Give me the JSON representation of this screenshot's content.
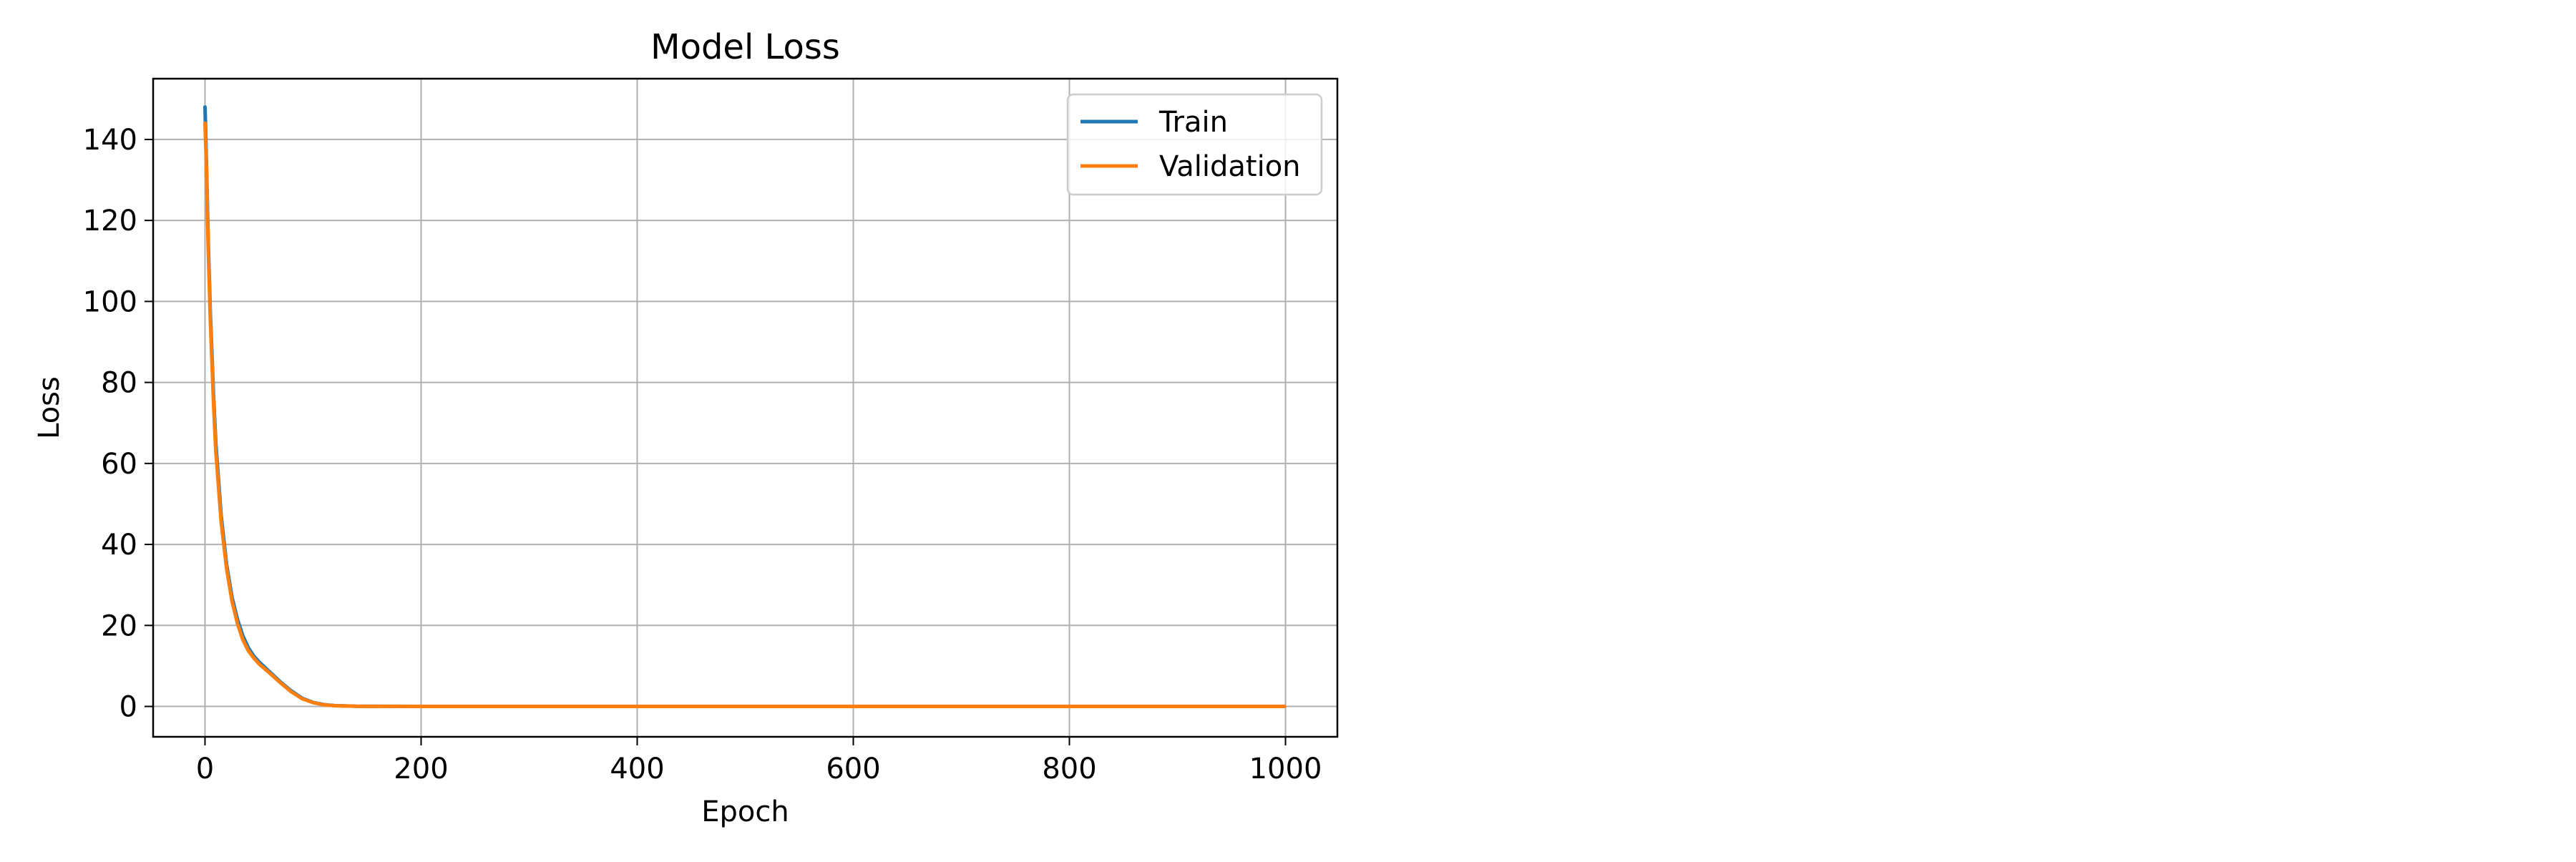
{
  "chart_data": {
    "type": "line",
    "title": "Model Loss",
    "xlabel": "Epoch",
    "ylabel": "Loss",
    "xlim": [
      -48,
      1048
    ],
    "ylim": [
      -7.5,
      155
    ],
    "xticks": [
      0,
      200,
      400,
      600,
      800,
      1000
    ],
    "yticks": [
      0,
      20,
      40,
      60,
      80,
      100,
      120,
      140
    ],
    "grid": true,
    "legend_position": "top-right",
    "series": [
      {
        "name": "Train",
        "color": "#1f77b4",
        "x": [
          0,
          1,
          3,
          5,
          8,
          10,
          15,
          20,
          25,
          30,
          35,
          40,
          45,
          50,
          60,
          70,
          80,
          90,
          100,
          110,
          120,
          140,
          160,
          200,
          300,
          400,
          500,
          600,
          700,
          800,
          900,
          999
        ],
        "y": [
          148,
          138,
          115,
          97,
          76,
          65,
          47,
          35,
          27,
          21.5,
          17.5,
          14.5,
          12.5,
          11,
          8.5,
          6,
          3.8,
          2.0,
          1.0,
          0.45,
          0.2,
          0.05,
          0.02,
          0,
          0,
          0,
          0,
          0,
          0,
          0,
          0,
          0
        ]
      },
      {
        "name": "Validation",
        "color": "#ff7f0e",
        "x": [
          0,
          1,
          3,
          5,
          8,
          10,
          15,
          20,
          25,
          30,
          35,
          40,
          45,
          50,
          60,
          70,
          80,
          90,
          100,
          110,
          120,
          140,
          160,
          200,
          300,
          400,
          500,
          600,
          700,
          800,
          900,
          999
        ],
        "y": [
          144,
          136,
          113,
          95,
          74,
          63,
          45.5,
          34,
          26,
          20.5,
          16.5,
          13.8,
          12,
          10.5,
          8.2,
          5.8,
          3.6,
          1.9,
          0.95,
          0.42,
          0.18,
          0.05,
          0.02,
          0,
          0,
          0,
          0,
          0,
          0,
          0,
          0,
          0
        ]
      }
    ]
  }
}
